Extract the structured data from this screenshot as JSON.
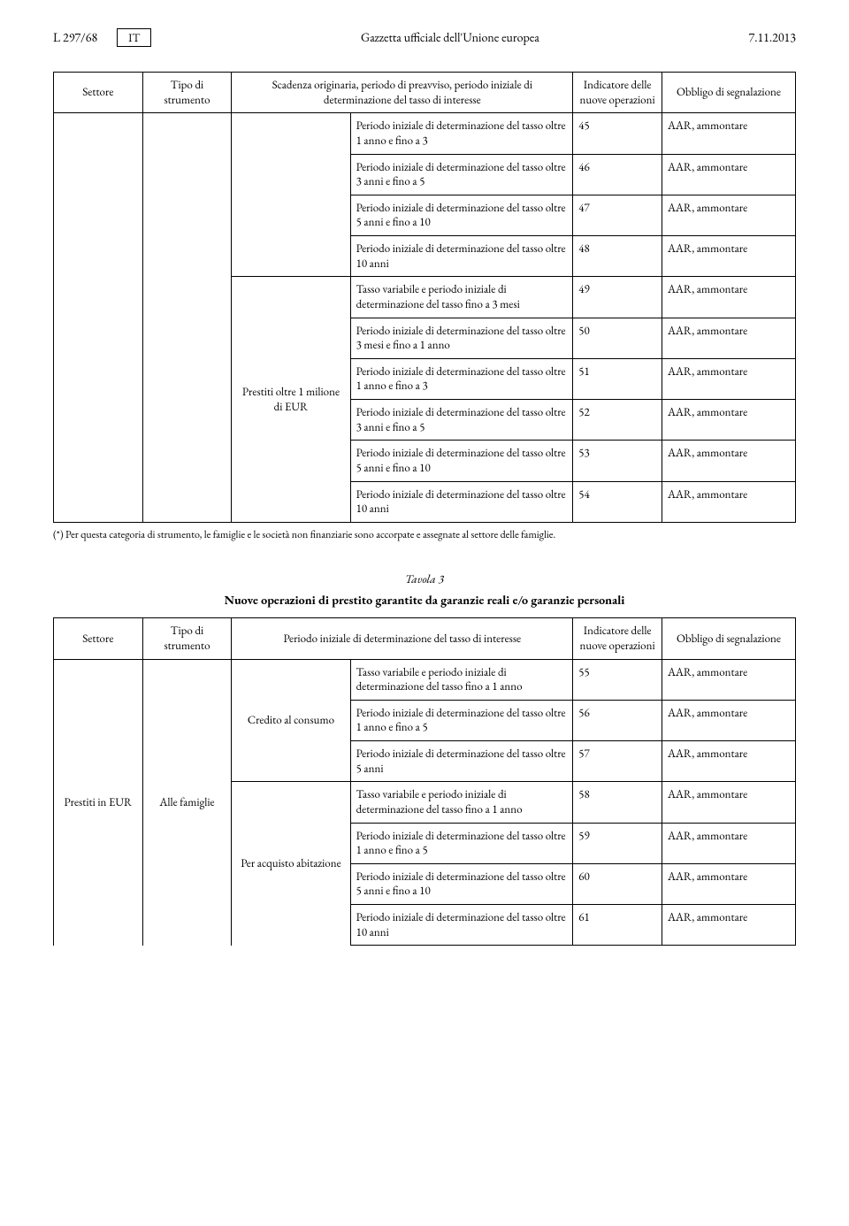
{
  "header": {
    "page_ref": "L 297/68",
    "lang": "IT",
    "journal": "Gazzetta ufficiale dell'Unione europea",
    "date": "7.11.2013"
  },
  "table1": {
    "head": {
      "settore": "Settore",
      "tipo": "Tipo di strumento",
      "scadenza": "Scadenza originaria, periodo di preavviso, periodo iniziale di determinazione del tasso di interesse",
      "indicatore": "Indicatore delle nuove operazioni",
      "obbligo": "Obbligo di segnalazione"
    },
    "tipo_cell": "Prestiti oltre 1 milione di EUR",
    "rows": [
      {
        "d": "Periodo iniziale di determinazione del tasso oltre 1 anno e fino a 3",
        "n": "45",
        "o": "AAR, ammontare"
      },
      {
        "d": "Periodo iniziale di determinazione del tasso oltre 3 anni e fino a 5",
        "n": "46",
        "o": "AAR, ammontare"
      },
      {
        "d": "Periodo iniziale di determinazione del tasso oltre 5 anni e fino a 10",
        "n": "47",
        "o": "AAR, ammontare"
      },
      {
        "d": "Periodo iniziale di determinazione del tasso oltre 10 anni",
        "n": "48",
        "o": "AAR, ammontare"
      },
      {
        "d": "Tasso variabile e periodo iniziale di determinazione del tasso fino a 3 mesi",
        "n": "49",
        "o": "AAR, ammontare"
      },
      {
        "d": "Periodo iniziale di determinazione del tasso oltre 3 mesi e fino a 1 anno",
        "n": "50",
        "o": "AAR, ammontare"
      },
      {
        "d": "Periodo iniziale di determinazione del tasso oltre 1 anno e fino a 3",
        "n": "51",
        "o": "AAR, ammontare"
      },
      {
        "d": "Periodo iniziale di determinazione del tasso oltre 3 anni e fino a 5",
        "n": "52",
        "o": "AAR, ammontare"
      },
      {
        "d": "Periodo iniziale di determinazione del tasso oltre 5 anni e fino a 10",
        "n": "53",
        "o": "AAR, ammontare"
      },
      {
        "d": "Periodo iniziale di determinazione del tasso oltre 10 anni",
        "n": "54",
        "o": "AAR, ammontare"
      }
    ]
  },
  "footnote": "(*) Per questa categoria di strumento, le famiglie e le società non finanziarie sono accorpate e assegnate al settore delle famiglie.",
  "table2": {
    "number": "Tavola 3",
    "title": "Nuove operazioni di prestito garantite da garanzie reali e/o garanzie personali",
    "head": {
      "settore": "Settore",
      "tipo": "Tipo di strumento",
      "scadenza": "Periodo iniziale di determinazione del tasso di interesse",
      "indicatore": "Indicatore delle nuove operazioni",
      "obbligo": "Obbligo di segnalazione"
    },
    "col1": "Prestiti in EUR",
    "col2": "Alle famiglie",
    "type1": "Credito al consumo",
    "type2": "Per acquisto abitazione",
    "rows": [
      {
        "d": "Tasso variabile e periodo iniziale di determinazione del tasso fino a 1 anno",
        "n": "55",
        "o": "AAR, ammontare"
      },
      {
        "d": "Periodo iniziale di determinazione del tasso oltre 1 anno e fino a 5",
        "n": "56",
        "o": "AAR, ammontare"
      },
      {
        "d": "Periodo iniziale di determinazione del tasso oltre 5 anni",
        "n": "57",
        "o": "AAR, ammontare"
      },
      {
        "d": "Tasso variabile e periodo iniziale di determinazione del tasso fino a 1 anno",
        "n": "58",
        "o": "AAR, ammontare"
      },
      {
        "d": "Periodo iniziale di determinazione del tasso oltre 1 anno e fino a 5",
        "n": "59",
        "o": "AAR, ammontare"
      },
      {
        "d": "Periodo iniziale di determinazione del tasso oltre 5 anni e fino a 10",
        "n": "60",
        "o": "AAR, ammontare"
      },
      {
        "d": "Periodo iniziale di determinazione del tasso oltre 10 anni",
        "n": "61",
        "o": "AAR, ammontare"
      }
    ]
  }
}
